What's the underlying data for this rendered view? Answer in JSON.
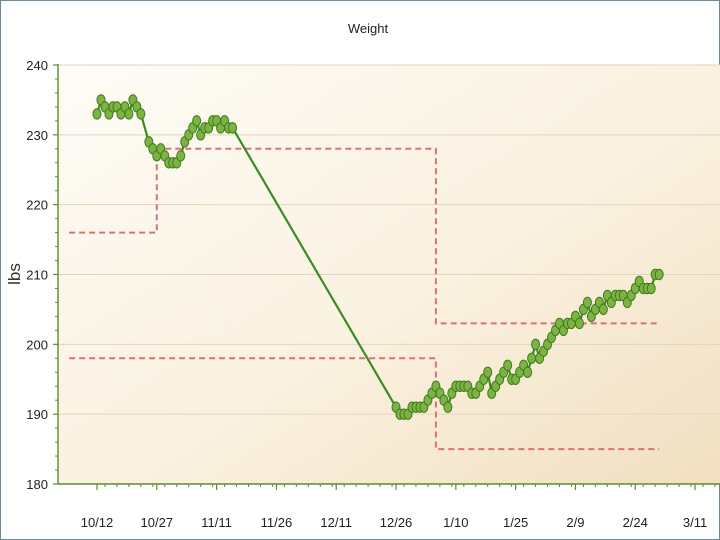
{
  "chart_data": {
    "type": "line",
    "title": "Weight",
    "xlabel": "",
    "ylabel": "lbs",
    "ylim": [
      180,
      240
    ],
    "yticks": [
      180,
      190,
      200,
      210,
      220,
      230,
      240
    ],
    "x_start": "10/5",
    "x_end": "3/14",
    "xtick_labels": [
      "10/12",
      "10/27",
      "11/11",
      "11/26",
      "12/11",
      "12/26",
      "1/10",
      "1/25",
      "2/9",
      "2/24",
      "3/11"
    ],
    "xtick_days": [
      7,
      22,
      37,
      52,
      67,
      82,
      97,
      112,
      127,
      142,
      157
    ],
    "grid": true,
    "legend": "none",
    "series": [
      {
        "kind": "line-markers",
        "color": "#3a8c25",
        "marker_color": "#7cb342",
        "points": [
          [
            7,
            233
          ],
          [
            8,
            235
          ],
          [
            9,
            234
          ],
          [
            10,
            233
          ],
          [
            11,
            234
          ],
          [
            12,
            234
          ],
          [
            13,
            233
          ],
          [
            14,
            234
          ],
          [
            15,
            233
          ],
          [
            16,
            235
          ],
          [
            17,
            234
          ],
          [
            18,
            233
          ],
          [
            20,
            229
          ],
          [
            21,
            228
          ],
          [
            22,
            227
          ],
          [
            23,
            228
          ],
          [
            24,
            227
          ],
          [
            25,
            226
          ],
          [
            26,
            226
          ],
          [
            27,
            226
          ],
          [
            28,
            227
          ],
          [
            29,
            229
          ],
          [
            30,
            230
          ],
          [
            31,
            231
          ],
          [
            32,
            232
          ],
          [
            33,
            230
          ],
          [
            34,
            231
          ],
          [
            35,
            231
          ],
          [
            36,
            232
          ],
          [
            37,
            232
          ],
          [
            38,
            231
          ],
          [
            39,
            232
          ],
          [
            40,
            231
          ],
          [
            41,
            231
          ],
          [
            82,
            191
          ],
          [
            83,
            190
          ],
          [
            84,
            190
          ],
          [
            85,
            190
          ],
          [
            86,
            191
          ],
          [
            87,
            191
          ],
          [
            88,
            191
          ],
          [
            89,
            191
          ],
          [
            90,
            192
          ],
          [
            91,
            193
          ],
          [
            92,
            194
          ],
          [
            93,
            193
          ],
          [
            94,
            192
          ],
          [
            95,
            191
          ],
          [
            96,
            193
          ],
          [
            97,
            194
          ],
          [
            98,
            194
          ],
          [
            99,
            194
          ],
          [
            100,
            194
          ],
          [
            101,
            193
          ],
          [
            102,
            193
          ],
          [
            103,
            194
          ],
          [
            104,
            195
          ],
          [
            105,
            196
          ],
          [
            106,
            193
          ],
          [
            107,
            194
          ],
          [
            108,
            195
          ],
          [
            109,
            196
          ],
          [
            110,
            197
          ],
          [
            111,
            195
          ],
          [
            112,
            195
          ],
          [
            113,
            196
          ],
          [
            114,
            197
          ],
          [
            115,
            196
          ],
          [
            116,
            198
          ],
          [
            117,
            200
          ],
          [
            118,
            198
          ],
          [
            119,
            199
          ],
          [
            120,
            200
          ],
          [
            121,
            201
          ],
          [
            122,
            202
          ],
          [
            123,
            203
          ],
          [
            124,
            202
          ],
          [
            125,
            203
          ],
          [
            126,
            203
          ],
          [
            127,
            204
          ],
          [
            128,
            203
          ],
          [
            129,
            205
          ],
          [
            130,
            206
          ],
          [
            131,
            204
          ],
          [
            132,
            205
          ],
          [
            133,
            206
          ],
          [
            134,
            205
          ],
          [
            135,
            207
          ],
          [
            136,
            206
          ],
          [
            137,
            207
          ],
          [
            138,
            207
          ],
          [
            139,
            207
          ],
          [
            140,
            206
          ],
          [
            141,
            207
          ],
          [
            142,
            208
          ],
          [
            143,
            209
          ],
          [
            144,
            208
          ],
          [
            145,
            208
          ],
          [
            146,
            208
          ],
          [
            147,
            210
          ],
          [
            148,
            210
          ]
        ]
      },
      {
        "kind": "dashed-step",
        "color": "#e07070",
        "points": [
          [
            0,
            216
          ],
          [
            22,
            216
          ],
          [
            22,
            228
          ],
          [
            92,
            228
          ],
          [
            92,
            203
          ],
          [
            148,
            203
          ]
        ]
      },
      {
        "kind": "dashed-step",
        "color": "#e07070",
        "points": [
          [
            0,
            198
          ],
          [
            92,
            198
          ],
          [
            92,
            185
          ],
          [
            148,
            185
          ]
        ]
      }
    ]
  }
}
